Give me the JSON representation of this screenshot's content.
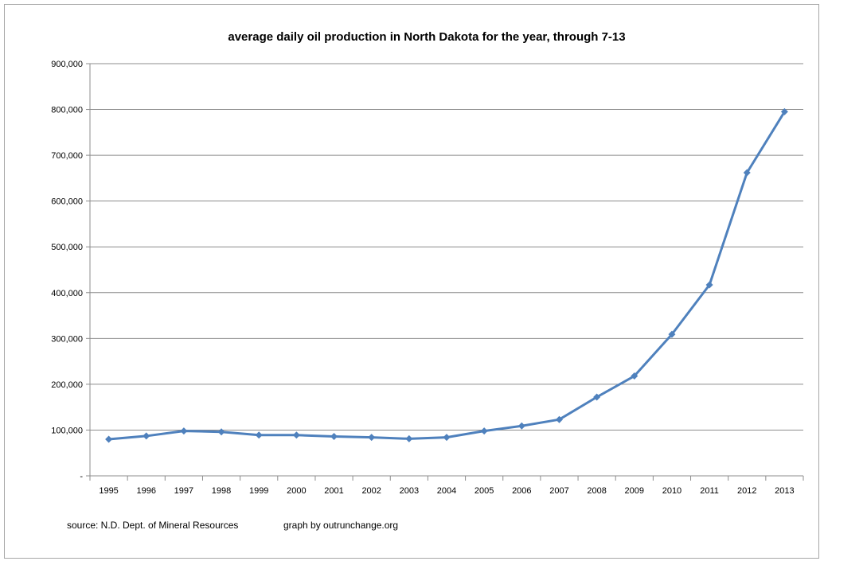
{
  "chart_data": {
    "type": "line",
    "title": "average daily oil production in North Dakota for the year, through 7-13",
    "xlabel": "",
    "ylabel": "",
    "categories": [
      "1995",
      "1996",
      "1997",
      "1998",
      "1999",
      "2000",
      "2001",
      "2002",
      "2003",
      "2004",
      "2005",
      "2006",
      "2007",
      "2008",
      "2009",
      "2010",
      "2011",
      "2012",
      "2013"
    ],
    "series": [
      {
        "name": "average daily oil production",
        "color": "#4f81bd",
        "values": [
          80000,
          87000,
          98000,
          96000,
          89000,
          89000,
          86000,
          84000,
          81000,
          84000,
          98000,
          109000,
          123000,
          172000,
          218000,
          309000,
          417000,
          662000,
          795000
        ]
      }
    ],
    "ylim": [
      0,
      900000
    ],
    "yticks": [
      0,
      100000,
      200000,
      300000,
      400000,
      500000,
      600000,
      700000,
      800000,
      900000
    ],
    "ytick_labels": [
      "-",
      "100,000",
      "200,000",
      "300,000",
      "400,000",
      "500,000",
      "600,000",
      "700,000",
      "800,000",
      "900,000"
    ],
    "grid": true,
    "legend": "none"
  },
  "notes": {
    "source": "source: N.D. Dept. of Mineral Resources",
    "credit": "graph by outrunchange.org"
  }
}
